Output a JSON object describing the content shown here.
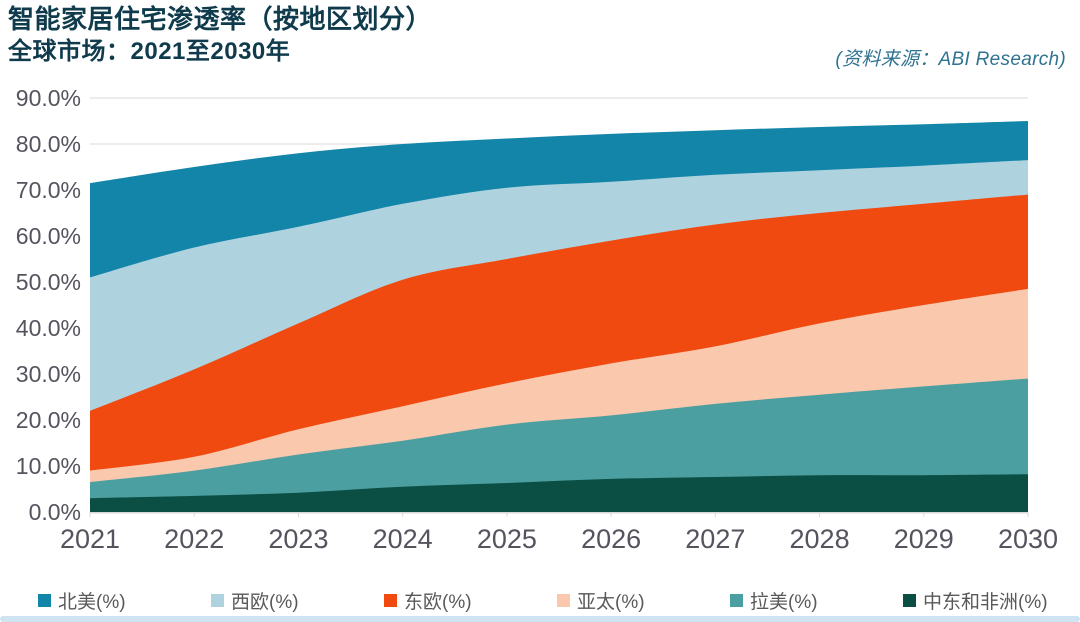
{
  "header": {
    "title": "智能家居住宅渗透率（按地区划分）",
    "subtitle": "全球市场：2021至2030年",
    "source": "(资料来源：ABI Research)"
  },
  "chart_data": {
    "type": "area",
    "mode": "layered-overlapping",
    "title": "智能家居住宅渗透率（按地区划分）",
    "subtitle": "全球市场：2021至2030年",
    "xlabel": "",
    "ylabel": "",
    "x": [
      2021,
      2022,
      2023,
      2024,
      2025,
      2026,
      2027,
      2028,
      2029,
      2030
    ],
    "x_tick_labels": [
      "2021",
      "2022",
      "2023",
      "2024",
      "2025",
      "2026",
      "2027",
      "2028",
      "2029",
      "2030"
    ],
    "ylim": [
      0,
      90
    ],
    "ytick_step": 10,
    "y_tick_labels": [
      "0.0%",
      "10.0%",
      "20.0%",
      "30.0%",
      "40.0%",
      "50.0%",
      "60.0%",
      "70.0%",
      "80.0%",
      "90.0%"
    ],
    "grid": true,
    "legend_position": "bottom",
    "series": [
      {
        "name": "北美(%)",
        "color": "#1385A9",
        "values": [
          71.5,
          75.0,
          78.0,
          80.0,
          81.2,
          82.2,
          83.0,
          83.7,
          84.3,
          85.0
        ]
      },
      {
        "name": "西欧(%)",
        "color": "#AFD2DF",
        "values": [
          51.0,
          57.5,
          62.0,
          67.0,
          70.5,
          71.8,
          73.3,
          74.3,
          75.3,
          76.5
        ]
      },
      {
        "name": "东欧(%)",
        "color": "#F04A10",
        "values": [
          22.0,
          31.0,
          41.0,
          50.5,
          55.0,
          59.0,
          62.5,
          65.0,
          67.0,
          69.0
        ]
      },
      {
        "name": "亚太(%)",
        "color": "#F9C8AD",
        "values": [
          9.0,
          12.0,
          18.0,
          23.0,
          28.0,
          32.3,
          36.0,
          41.0,
          45.0,
          48.5
        ]
      },
      {
        "name": "拉美(%)",
        "color": "#4C9FA0",
        "values": [
          6.5,
          9.0,
          12.5,
          15.5,
          19.0,
          21.0,
          23.5,
          25.5,
          27.3,
          29.0
        ]
      },
      {
        "name": "中东和非洲(%)",
        "color": "#0B4E44",
        "values": [
          3.0,
          3.5,
          4.2,
          5.5,
          6.3,
          7.2,
          7.6,
          8.0,
          8.0,
          8.2
        ]
      }
    ]
  },
  "colors": {
    "title_text": "#0F3B4C",
    "source_text": "#2F7390",
    "grid_line": "#D9D9D9",
    "axis_label": "#54545E",
    "legend_text": "#595959",
    "bottom_strip": "#CFE3F2",
    "background": "#FFFFFF"
  }
}
